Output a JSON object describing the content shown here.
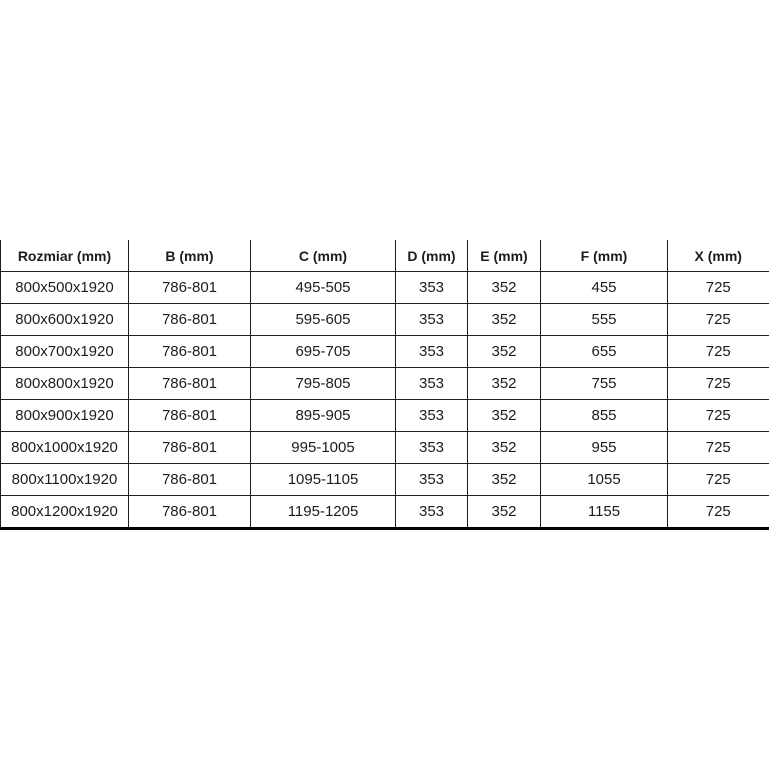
{
  "colors": {
    "background": "#ffffff",
    "border_thin": "#1f1f1f",
    "border_thick": "#000000",
    "text": "#1c1c1c"
  },
  "chart_data": {
    "type": "table",
    "title": "",
    "columns": [
      "Rozmiar (mm)",
      "B (mm)",
      "C (mm)",
      "D (mm)",
      "E (mm)",
      "F (mm)",
      "X (mm)"
    ],
    "rows": [
      [
        "800x500x1920",
        "786-801",
        "495-505",
        "353",
        "352",
        "455",
        "725"
      ],
      [
        "800x600x1920",
        "786-801",
        "595-605",
        "353",
        "352",
        "555",
        "725"
      ],
      [
        "800x700x1920",
        "786-801",
        "695-705",
        "353",
        "352",
        "655",
        "725"
      ],
      [
        "800x800x1920",
        "786-801",
        "795-805",
        "353",
        "352",
        "755",
        "725"
      ],
      [
        "800x900x1920",
        "786-801",
        "895-905",
        "353",
        "352",
        "855",
        "725"
      ],
      [
        "800x1000x1920",
        "786-801",
        "995-1005",
        "353",
        "352",
        "955",
        "725"
      ],
      [
        "800x1100x1920",
        "786-801",
        "1095-1105",
        "353",
        "352",
        "1055",
        "725"
      ],
      [
        "800x1200x1920",
        "786-801",
        "1195-1205",
        "353",
        "352",
        "1155",
        "725"
      ]
    ],
    "layout": {
      "grid": true,
      "header_bold": true,
      "cell_alignment": "center",
      "top_border": false,
      "thick_bottom_border": true
    }
  }
}
